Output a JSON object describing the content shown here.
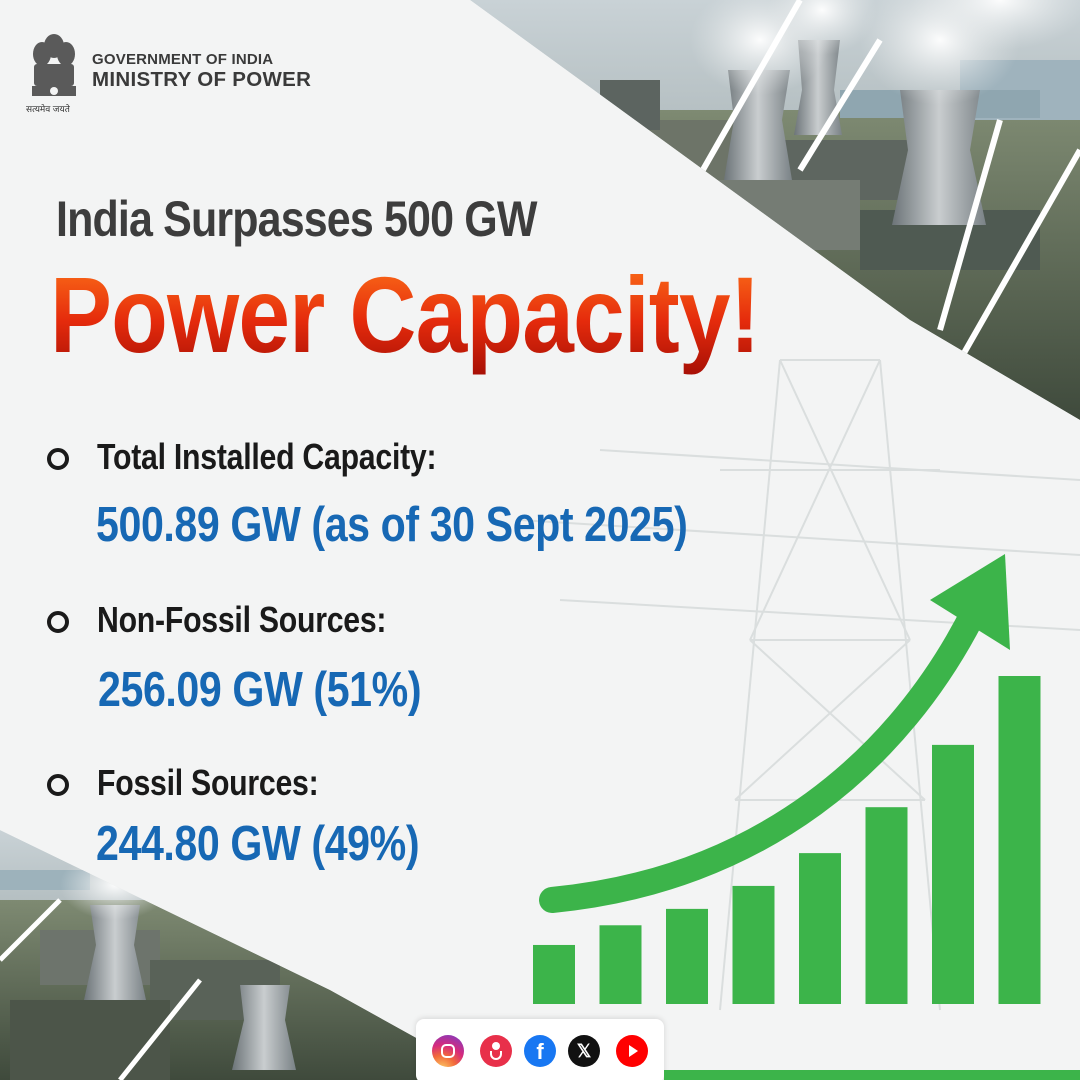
{
  "header": {
    "government": "GOVERNMENT OF INDIA",
    "ministry": "MINISTRY OF POWER",
    "motto": "सत्यमेव जयते"
  },
  "headline": {
    "line1": "India Surpasses 500 GW",
    "line2": "Power Capacity!"
  },
  "items": [
    {
      "label": "Total Installed Capacity:",
      "value": "500.89 GW (as of 30 Sept 2025)"
    },
    {
      "label": "Non-Fossil Sources:",
      "value": "256.09 GW (51%)"
    },
    {
      "label": "Fossil Sources:",
      "value": "244.80 GW (49%)"
    }
  ],
  "growth_graphic": {
    "bar_levels": [
      0.18,
      0.24,
      0.29,
      0.36,
      0.46,
      0.6,
      0.79,
      1.0
    ],
    "color": "#3cb44a"
  },
  "social_icons": [
    "instagram-icon",
    "koo-icon",
    "facebook-icon",
    "x-icon",
    "youtube-icon"
  ],
  "colors": {
    "headline_dark": "#3d3d3d",
    "headline_red": "#e52b0c",
    "value_blue": "#1768b4",
    "green": "#3cb44a"
  }
}
